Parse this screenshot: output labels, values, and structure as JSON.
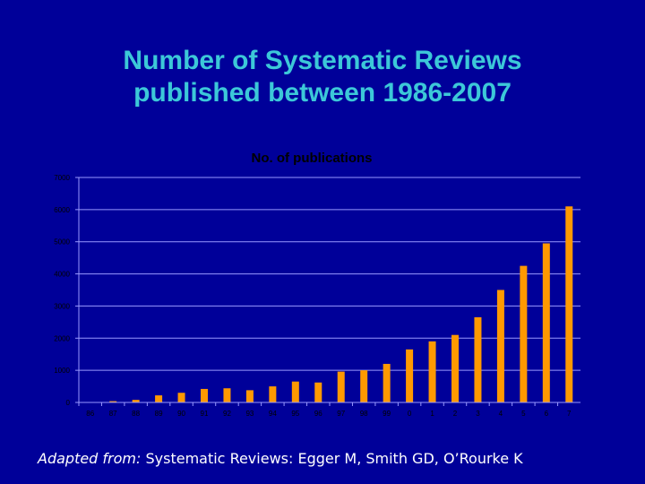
{
  "slide": {
    "title_line1": "Number of Systematic Reviews",
    "title_line2": "published between 1986-2007",
    "footer_prefix": "Adapted from:",
    "footer_text": " Systematic Reviews: Egger M, Smith GD, O’Rourke K"
  },
  "colors": {
    "background": "#000099",
    "title": "#3cc8d8",
    "bar": "#ff9900",
    "axis": "#9999ff",
    "text": "#000000"
  },
  "chart_data": {
    "type": "bar",
    "title": "No. of publications",
    "xlabel": "",
    "ylabel": "",
    "ylim": [
      0,
      7000
    ],
    "yticks": [
      0,
      1000,
      2000,
      3000,
      4000,
      5000,
      6000,
      7000
    ],
    "grid": true,
    "legend": "none",
    "categories": [
      "86",
      "87",
      "88",
      "89",
      "90",
      "91",
      "92",
      "93",
      "94",
      "95",
      "96",
      "97",
      "98",
      "99",
      "0",
      "1",
      "2",
      "3",
      "4",
      "5",
      "6",
      "7"
    ],
    "values": [
      10,
      40,
      80,
      220,
      300,
      420,
      440,
      380,
      500,
      650,
      620,
      960,
      1000,
      1200,
      1650,
      1900,
      2100,
      2650,
      3500,
      4250,
      4950,
      6100
    ]
  }
}
